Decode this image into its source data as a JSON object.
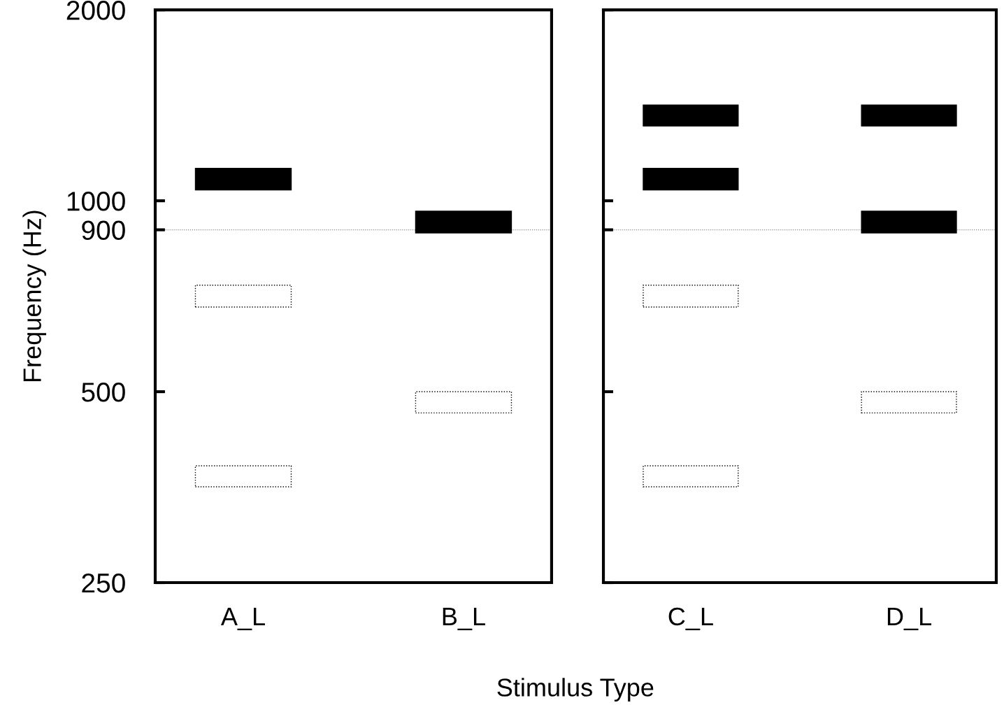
{
  "chart_data": [
    {
      "type": "bar",
      "categories": [
        "A_L",
        "B_L"
      ],
      "ylabel": "Frequency (Hz)",
      "xlabel": "Stimulus Type",
      "log": "y",
      "ylim": [
        250,
        2000
      ],
      "yticks": [
        250,
        500,
        900,
        1000,
        2000
      ],
      "grid": false,
      "legend": false,
      "ref_lines": [
        {
          "axis": "y",
          "value": 900,
          "color": "#808080",
          "line_style": "dotted"
        }
      ],
      "series": [
        {
          "color": "#000000",
          "line_style": "solid",
          "base": [
            1040,
            890
          ],
          "values": [
            85,
            73
          ]
        },
        {
          "color": "#ffffff",
          "line_style": "dotted",
          "base": [
            680,
            463
          ],
          "values": [
            56,
            37
          ]
        },
        {
          "color": "#ffffff",
          "line_style": "dotted",
          "base": [
            354,
            null
          ],
          "values": [
            28,
            null
          ]
        }
      ]
    },
    {
      "type": "bar",
      "categories": [
        "C_L",
        "D_L"
      ],
      "log": "y",
      "ylim": [
        250,
        2000
      ],
      "yticks": [
        250,
        500,
        900,
        1000,
        2000
      ],
      "tick_labels": "x",
      "grid": false,
      "legend": false,
      "ref_lines": [
        {
          "axis": "y",
          "value": 900,
          "color": "#808080",
          "line_style": "dotted"
        }
      ],
      "series": [
        {
          "color": "#000000",
          "line_style": "solid",
          "base": [
            1312,
            1312
          ],
          "values": [
            104,
            104
          ]
        },
        {
          "color": "#000000",
          "line_style": "solid",
          "base": [
            1040,
            890
          ],
          "values": [
            85,
            73
          ]
        },
        {
          "color": "#ffffff",
          "line_style": "dotted",
          "base": [
            680,
            463
          ],
          "values": [
            56,
            37
          ]
        },
        {
          "color": "#ffffff",
          "line_style": "dotted",
          "base": [
            354,
            null
          ],
          "values": [
            28,
            null
          ]
        }
      ]
    }
  ]
}
